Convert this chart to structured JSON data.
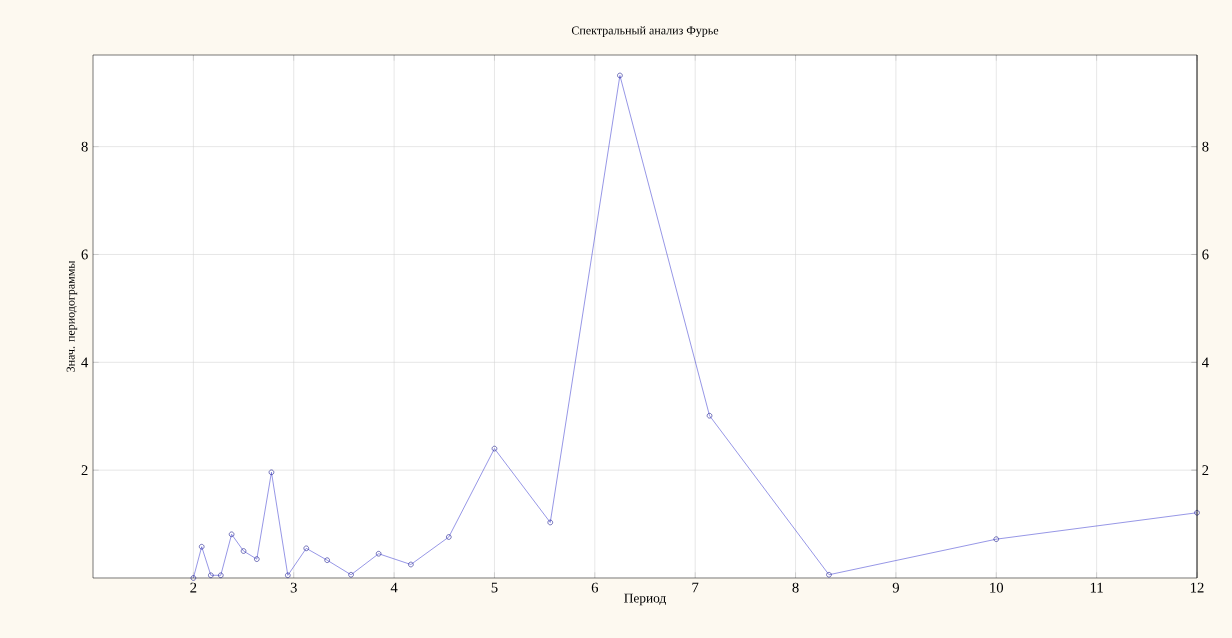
{
  "chart_data": {
    "type": "line",
    "title": "Спектральный анализ Фурье",
    "xlabel": "Период",
    "ylabel": "Знач. периодограммы",
    "x": [
      2,
      2.083,
      2.174,
      2.273,
      2.381,
      2.5,
      2.632,
      2.778,
      2.941,
      3.125,
      3.333,
      3.571,
      3.846,
      4.167,
      4.545,
      5,
      5.556,
      6.25,
      7.143,
      8.333,
      10,
      12
    ],
    "series": [
      {
        "color": "#3a3ad0",
        "values": [
          0,
          0.58,
          0.05,
          0.05,
          0.81,
          0.5,
          0.35,
          1.96,
          0.05,
          0.55,
          0.33,
          0.06,
          0.45,
          0.25,
          0.76,
          2.4,
          1.03,
          9.32,
          3.01,
          0.06,
          0.72,
          1.21
        ]
      }
    ],
    "xlim": [
      1,
      12
    ],
    "ylim": [
      0,
      9.7
    ],
    "xticks": [
      2,
      3,
      4,
      5,
      6,
      7,
      8,
      9,
      10,
      11,
      12
    ],
    "yticks": [
      2,
      4,
      6,
      8
    ],
    "y2lim": [
      0,
      9.7
    ],
    "y2ticks": [
      2,
      4,
      6,
      8
    ],
    "grid": true,
    "marker": "circle",
    "line_style": "solid"
  }
}
